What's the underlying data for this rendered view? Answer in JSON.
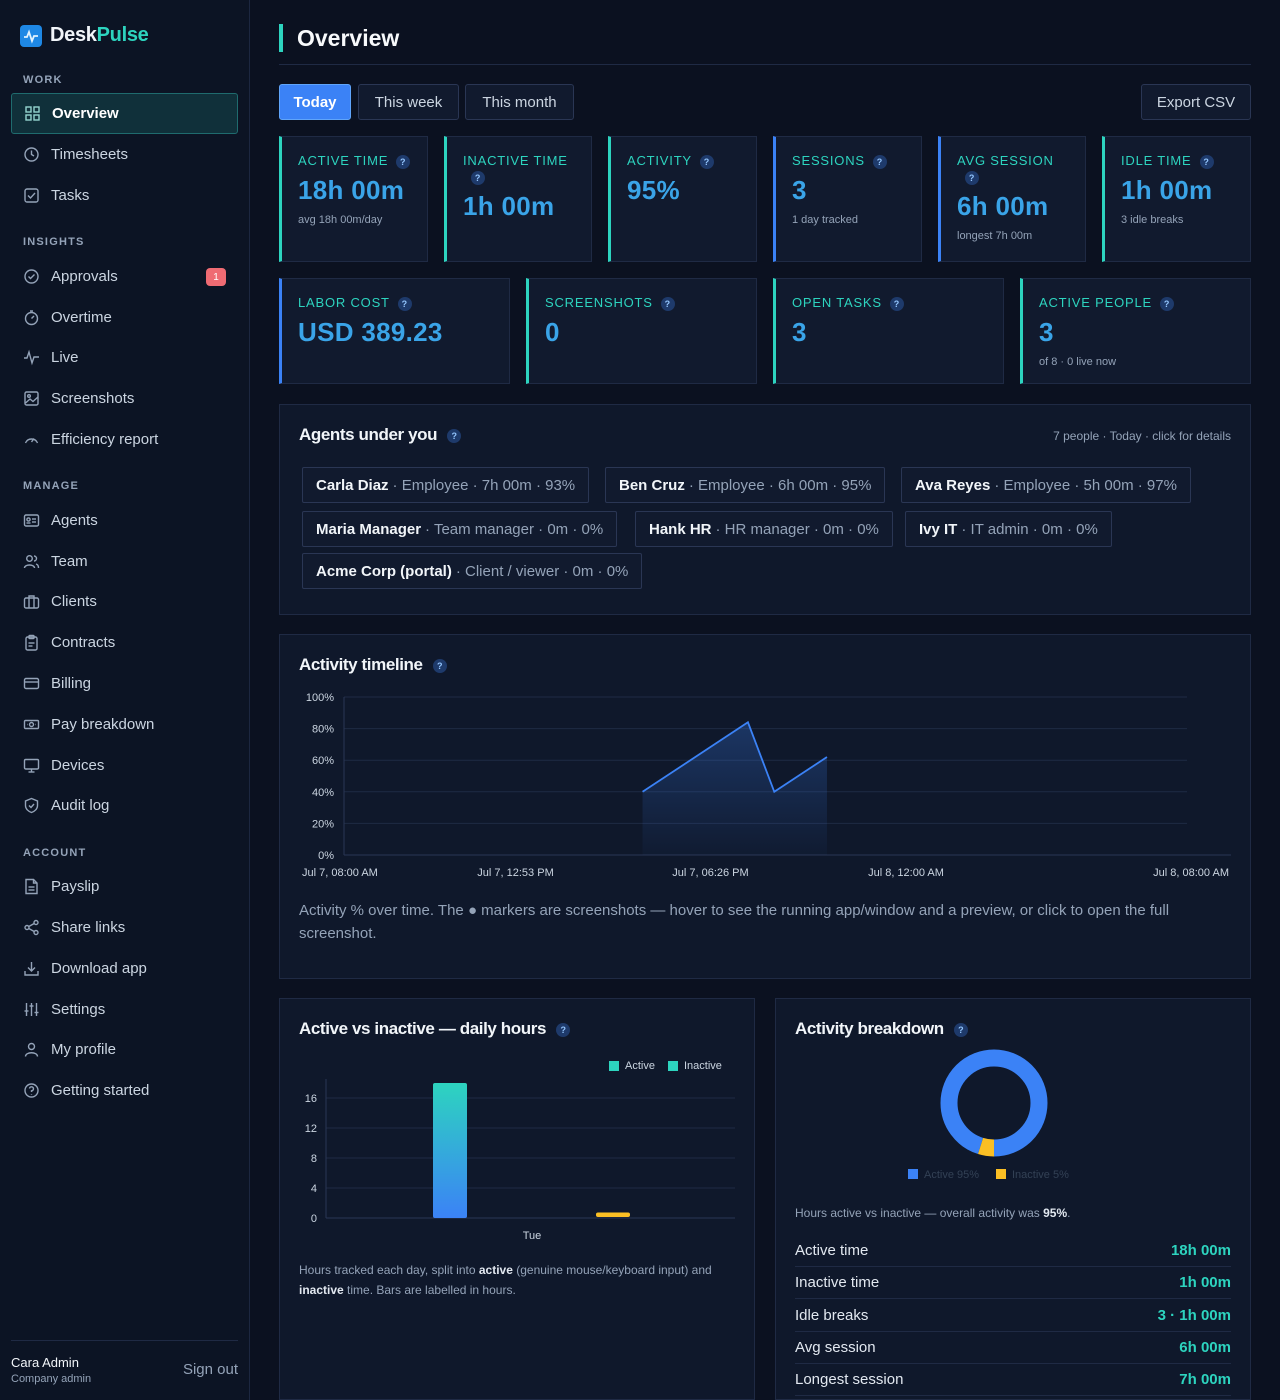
{
  "brand": {
    "name_prefix": "Desk",
    "name_suffix": "Pulse"
  },
  "sidebar": {
    "sections": {
      "work": "WORK",
      "insights": "INSIGHTS",
      "manage": "MANAGE",
      "account": "ACCOUNT"
    },
    "items": [
      {
        "label": "Overview",
        "icon": "grid-icon",
        "active": true
      },
      {
        "label": "Timesheets",
        "icon": "clock-icon"
      },
      {
        "label": "Tasks",
        "icon": "checkbox-icon"
      },
      {
        "label": "Approvals",
        "icon": "check-circle-icon",
        "badge": "1"
      },
      {
        "label": "Overtime",
        "icon": "stopwatch-icon"
      },
      {
        "label": "Live",
        "icon": "pulse-icon"
      },
      {
        "label": "Screenshots",
        "icon": "image-icon"
      },
      {
        "label": "Efficiency report",
        "icon": "gauge-icon"
      },
      {
        "label": "Agents",
        "icon": "id-card-icon"
      },
      {
        "label": "Team",
        "icon": "users-icon"
      },
      {
        "label": "Clients",
        "icon": "briefcase-icon"
      },
      {
        "label": "Contracts",
        "icon": "clipboard-icon"
      },
      {
        "label": "Billing",
        "icon": "credit-card-icon"
      },
      {
        "label": "Pay breakdown",
        "icon": "banknote-icon"
      },
      {
        "label": "Devices",
        "icon": "monitor-icon"
      },
      {
        "label": "Audit log",
        "icon": "shield-icon"
      },
      {
        "label": "Payslip",
        "icon": "file-icon"
      },
      {
        "label": "Share links",
        "icon": "share-icon"
      },
      {
        "label": "Download app",
        "icon": "download-icon"
      },
      {
        "label": "Settings",
        "icon": "sliders-icon"
      },
      {
        "label": "My profile",
        "icon": "user-icon"
      },
      {
        "label": "Getting started",
        "icon": "help-circle-icon"
      }
    ],
    "user": {
      "name": "Cara Admin",
      "role": "Company admin",
      "signout": "Sign out"
    }
  },
  "header": {
    "title": "Overview"
  },
  "toolbar": {
    "today": "Today",
    "week": "This week",
    "month": "This month",
    "export": "Export CSV"
  },
  "stats_row1": [
    {
      "label": "ACTIVE TIME",
      "value": "18h 00m",
      "sub": "avg 18h 00m/day"
    },
    {
      "label": "INACTIVE TIME",
      "value": "1h 00m",
      "sub": ""
    },
    {
      "label": "ACTIVITY",
      "value": "95%",
      "sub": ""
    },
    {
      "label": "SESSIONS",
      "value": "3",
      "sub": "1 day tracked"
    },
    {
      "label": "AVG SESSION",
      "value": "6h 00m",
      "sub": "longest 7h 00m"
    },
    {
      "label": "IDLE TIME",
      "value": "1h 00m",
      "sub": "3 idle breaks"
    }
  ],
  "stats_row2": [
    {
      "label": "LABOR COST",
      "value": "USD 389.23",
      "sub": ""
    },
    {
      "label": "SCREENSHOTS",
      "value": "0",
      "sub": ""
    },
    {
      "label": "OPEN TASKS",
      "value": "3",
      "sub": ""
    },
    {
      "label": "ACTIVE PEOPLE",
      "value": "3",
      "sub": "of 8 · 0 live now"
    }
  ],
  "agents": {
    "title": "Agents under you",
    "meta": "7 people · Today · click for details",
    "list": [
      {
        "name": "Carla Diaz",
        "rest": "· Employee · 7h 00m · 93%"
      },
      {
        "name": "Ben Cruz",
        "rest": "· Employee · 6h 00m · 95%"
      },
      {
        "name": "Ava Reyes",
        "rest": "· Employee · 5h 00m · 97%"
      },
      {
        "name": "Maria Manager",
        "rest": "· Team manager · 0m · 0%"
      },
      {
        "name": "Hank HR",
        "rest": "· HR manager · 0m · 0%"
      },
      {
        "name": "Ivy IT",
        "rest": "· IT admin · 0m · 0%"
      },
      {
        "name": "Acme Corp (portal)",
        "rest": "· Client / viewer · 0m · 0%"
      }
    ]
  },
  "timeline": {
    "title": "Activity timeline",
    "caption": "Activity % over time. The ● markers are screenshots — hover to see the running app/window and a preview, or click to open the full screenshot."
  },
  "bars_card": {
    "title": "Active vs inactive — daily hours",
    "caption_pre": "Hours tracked each day, split into ",
    "caption_b1": "active",
    "caption_mid": " (genuine mouse/keyboard input) and ",
    "caption_b2": "inactive",
    "caption_post": " time. Bars are labelled in hours."
  },
  "breakdown": {
    "title": "Activity breakdown",
    "caption_pre": "Hours active vs inactive — overall activity was ",
    "caption_value": "95%",
    "caption_post": ".",
    "rows": [
      {
        "k": "Active time",
        "v": "18h 00m"
      },
      {
        "k": "Inactive time",
        "v": "1h 00m"
      },
      {
        "k": "Idle breaks",
        "v": "3 · 1h 00m"
      },
      {
        "k": "Avg session",
        "v": "6h 00m"
      },
      {
        "k": "Longest session",
        "v": "7h 00m"
      }
    ]
  },
  "colors": {
    "teal": "#2dd4bf",
    "blue": "#3b82f6",
    "yellow": "#fbbf24",
    "bg": "#0b1120"
  },
  "chart_data": [
    {
      "type": "area",
      "title": "Activity timeline",
      "xlabel": "",
      "ylabel": "",
      "ylim": [
        0,
        100
      ],
      "y_ticks": [
        "0%",
        "20%",
        "40%",
        "60%",
        "80%",
        "100%"
      ],
      "x_ticks": [
        "Jul 7, 08:00 AM",
        "Jul 7, 12:53 PM",
        "Jul 7, 06:26 PM",
        "Jul 8, 12:00 AM",
        "Jul 8, 08:00 AM"
      ],
      "x_range": [
        "Jul 7, 08:00 AM",
        "Jul 8, 08:00 AM"
      ],
      "x": [
        "Jul 7, 04:30 PM",
        "Jul 7, 07:30 PM",
        "Jul 7, 08:15 PM",
        "Jul 7, 09:45 PM"
      ],
      "values": [
        40,
        84,
        40,
        62
      ],
      "grid": true
    },
    {
      "type": "bar",
      "title": "Active vs inactive — daily hours",
      "categories": [
        "Tue"
      ],
      "series": [
        {
          "name": "Active",
          "values": [
            18
          ]
        },
        {
          "name": "Inactive",
          "values": [
            1
          ]
        }
      ],
      "ylim": [
        0,
        18
      ],
      "y_ticks": [
        "0",
        "4",
        "8",
        "12",
        "16"
      ],
      "legend": "top-right",
      "grid": true
    },
    {
      "type": "pie",
      "title": "Activity breakdown",
      "categories": [
        "Active",
        "Inactive"
      ],
      "values": [
        95,
        5
      ],
      "legend": "bottom"
    }
  ]
}
